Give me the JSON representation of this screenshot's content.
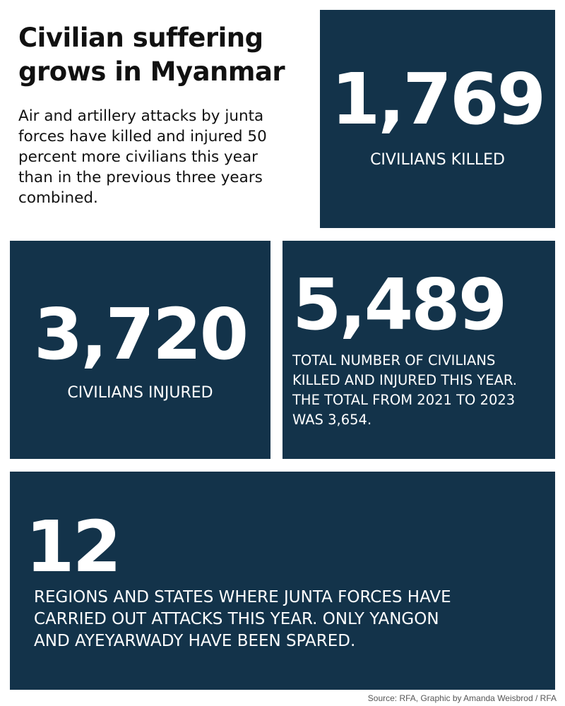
{
  "header": {
    "title_lines": [
      "Civilian suffering",
      "grows in Myanmar"
    ],
    "intro_lines": [
      "Air and artillery attacks by junta",
      "forces have killed and injured 50",
      "percent more civilians this year",
      "than in the previous three years",
      "combined."
    ]
  },
  "stats": [
    {
      "value": "1,769",
      "label_lines": [
        "CIVILIANS KILLED"
      ]
    },
    {
      "value": "3,720",
      "label_lines": [
        "CIVILIANS INJURED"
      ]
    },
    {
      "value": "5,489",
      "label_lines": [
        "TOTAL NUMBER OF CIVILIANS",
        "KILLED AND INJURED THIS YEAR.",
        "THE TOTAL FROM 2021 TO 2023",
        "WAS 3,654."
      ]
    },
    {
      "value": "12",
      "label_lines": [
        "REGIONS AND STATES WHERE JUNTA FORCES HAVE",
        "CARRIED OUT ATTACKS THIS YEAR. ONLY YANGON",
        "AND AYEYARWADY HAVE BEEN SPARED."
      ]
    }
  ],
  "source": "Source: RFA, Graphic by Amanda Weisbrod / RFA",
  "colors": {
    "box": "#13334a",
    "text_on_box": "#ffffff"
  }
}
